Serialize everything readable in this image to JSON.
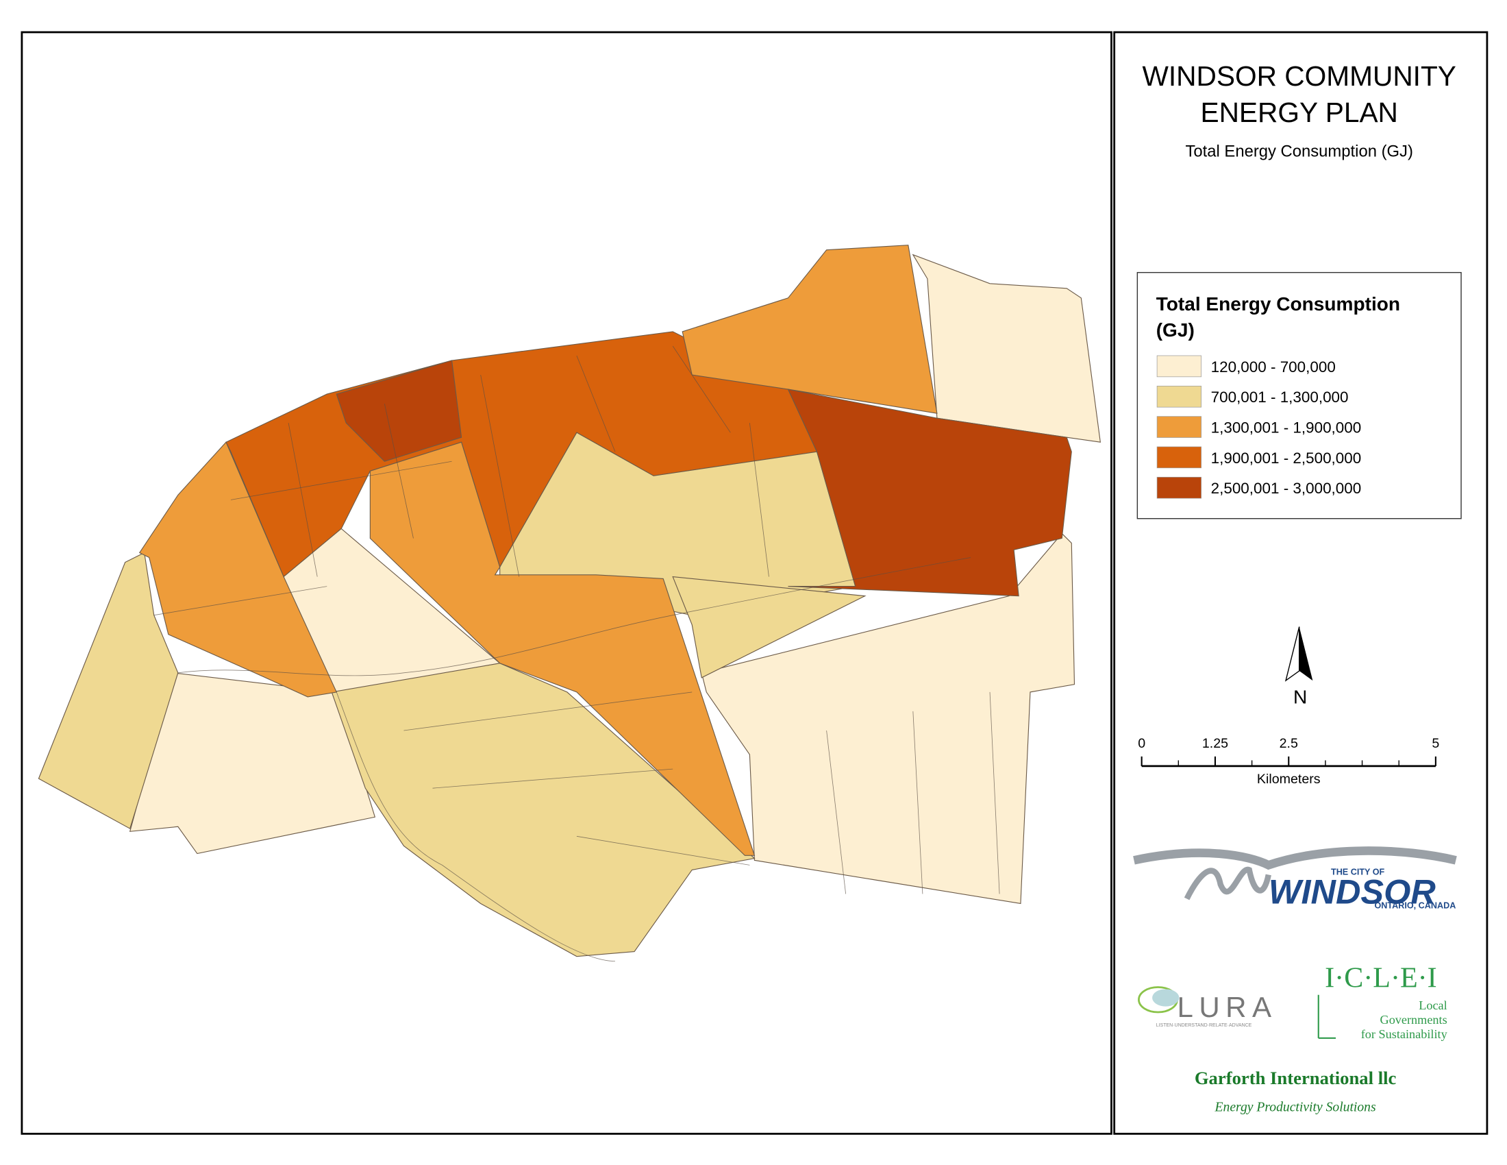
{
  "header": {
    "title": [
      "WINDSOR COMMUNITY",
      "ENERGY PLAN"
    ],
    "subtitle": "Total Energy Consumption (GJ)"
  },
  "legend": {
    "title": [
      "Total Energy Consumption",
      "(GJ)"
    ],
    "items": [
      {
        "label": "120,000 - 700,000",
        "color": "#fdefd2"
      },
      {
        "label": "700,001 - 1,300,000",
        "color": "#efd992"
      },
      {
        "label": "1,300,001 - 1,900,000",
        "color": "#ee9c3a"
      },
      {
        "label": "1,900,001 - 2,500,000",
        "color": "#d8620c"
      },
      {
        "label": "2,500,001 - 3,000,000",
        "color": "#b9440a"
      }
    ]
  },
  "north_arrow": {
    "label": "N"
  },
  "scale_bar": {
    "ticks": [
      0,
      1.25,
      2.5,
      5
    ],
    "unit": "Kilometers"
  },
  "logos": {
    "windsor": {
      "small": "THE CITY OF",
      "name": "WINDSOR",
      "place": "ONTARIO, CANADA"
    },
    "lura": {
      "name": "LURA",
      "tagline": "LISTEN·UNDERSTAND·RELATE·ADVANCE"
    },
    "iclei": {
      "name": "I·C·L·E·I",
      "lines": [
        "Local",
        "Governments",
        "for Sustainability"
      ]
    },
    "garforth": {
      "name": "Garforth International llc",
      "tagline": "Energy Productivity Solutions"
    }
  }
}
